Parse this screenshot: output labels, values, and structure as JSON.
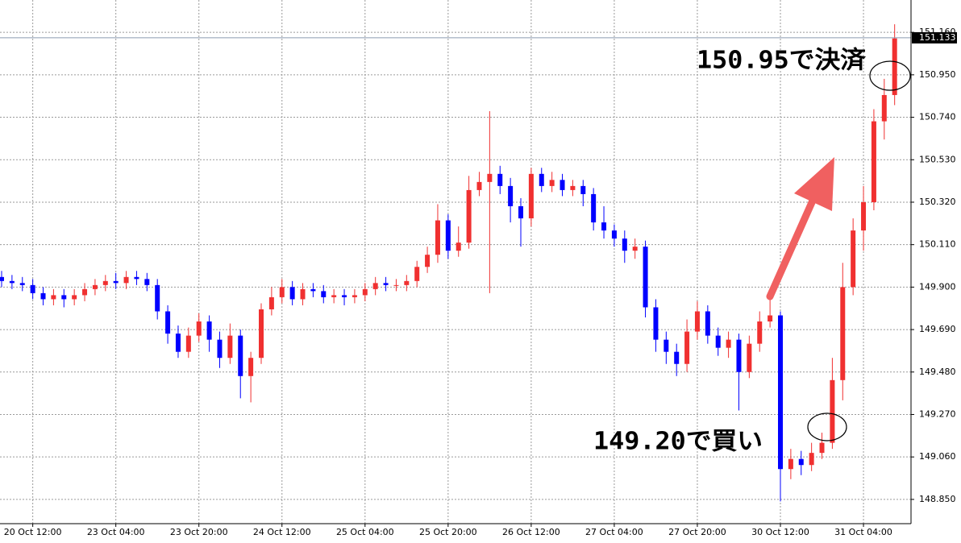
{
  "chart_data": {
    "type": "candlestick",
    "categories": [
      null,
      null,
      null,
      "20 Oct 12:00",
      null,
      null,
      null,
      null,
      null,
      null,
      null,
      "23 Oct 04:00",
      null,
      null,
      null,
      null,
      null,
      null,
      null,
      "23 Oct 20:00",
      null,
      null,
      null,
      null,
      null,
      null,
      null,
      "24 Oct 12:00",
      null,
      null,
      null,
      null,
      null,
      null,
      null,
      "25 Oct 04:00",
      null,
      null,
      null,
      null,
      null,
      null,
      null,
      "25 Oct 20:00",
      null,
      null,
      null,
      null,
      null,
      null,
      null,
      "26 Oct 12:00",
      null,
      null,
      null,
      null,
      null,
      null,
      null,
      "27 Oct 04:00",
      null,
      null,
      null,
      null,
      null,
      null,
      null,
      "27 Oct 20:00",
      null,
      null,
      null,
      null,
      null,
      null,
      null,
      "30 Oct 12:00",
      null,
      null,
      null,
      null,
      null,
      null,
      null,
      "31 Oct 04:00",
      null,
      null,
      null
    ],
    "open": [
      149.95,
      149.93,
      149.92,
      149.91,
      149.87,
      149.84,
      149.86,
      149.84,
      149.86,
      149.89,
      149.91,
      149.93,
      149.92,
      149.95,
      149.94,
      149.91,
      149.78,
      149.67,
      149.58,
      149.66,
      149.73,
      149.64,
      149.55,
      149.66,
      149.46,
      149.55,
      149.79,
      149.85,
      149.9,
      149.84,
      149.89,
      149.88,
      149.85,
      149.86,
      149.85,
      149.86,
      149.89,
      149.92,
      149.91,
      149.91,
      149.93,
      150.0,
      150.06,
      150.23,
      150.08,
      150.12,
      150.38,
      150.42,
      150.46,
      150.4,
      150.3,
      150.24,
      150.46,
      150.4,
      150.43,
      150.38,
      150.4,
      150.36,
      150.22,
      150.18,
      150.14,
      150.08,
      150.1,
      149.8,
      149.64,
      149.58,
      149.52,
      149.68,
      149.78,
      149.66,
      149.6,
      149.64,
      149.48,
      149.62,
      149.73,
      149.76,
      149.0,
      149.05,
      149.02,
      149.08,
      149.13,
      149.44,
      149.9,
      150.18,
      150.32,
      150.72,
      150.85
    ],
    "high": [
      149.98,
      149.96,
      149.95,
      149.94,
      149.9,
      149.89,
      149.89,
      149.89,
      149.92,
      149.94,
      149.96,
      149.97,
      149.98,
      149.98,
      149.97,
      149.94,
      149.81,
      149.71,
      149.7,
      149.77,
      149.76,
      149.68,
      149.72,
      149.69,
      149.58,
      149.82,
      149.9,
      149.94,
      149.93,
      149.92,
      149.92,
      149.91,
      149.89,
      149.89,
      149.89,
      149.92,
      149.95,
      149.95,
      149.94,
      149.96,
      150.03,
      150.1,
      150.31,
      150.26,
      150.2,
      150.45,
      150.47,
      150.77,
      150.5,
      150.44,
      150.34,
      150.49,
      150.49,
      150.47,
      150.46,
      150.43,
      150.43,
      150.39,
      150.3,
      150.21,
      150.18,
      150.14,
      150.13,
      149.84,
      149.68,
      149.62,
      149.74,
      149.83,
      149.81,
      149.7,
      149.68,
      149.67,
      149.66,
      149.78,
      149.86,
      149.78,
      149.1,
      149.09,
      149.13,
      149.18,
      149.55,
      150.02,
      150.24,
      150.4,
      150.78,
      150.93,
      151.2
    ],
    "low": [
      149.9,
      149.89,
      149.88,
      149.84,
      149.81,
      149.81,
      149.8,
      149.81,
      149.83,
      149.86,
      149.88,
      149.89,
      149.89,
      149.91,
      149.88,
      149.74,
      149.62,
      149.55,
      149.55,
      149.63,
      149.58,
      149.5,
      149.52,
      149.35,
      149.33,
      149.52,
      149.76,
      149.82,
      149.81,
      149.81,
      149.85,
      149.82,
      149.82,
      149.81,
      149.82,
      149.83,
      149.86,
      149.88,
      149.88,
      149.88,
      149.9,
      149.97,
      150.02,
      150.04,
      150.05,
      150.09,
      150.35,
      149.87,
      150.36,
      150.22,
      150.1,
      150.2,
      150.37,
      150.37,
      150.35,
      150.35,
      150.3,
      150.18,
      150.14,
      150.1,
      150.02,
      150.04,
      149.75,
      149.58,
      149.52,
      149.46,
      149.48,
      149.64,
      149.62,
      149.56,
      149.55,
      149.29,
      149.45,
      149.58,
      149.7,
      148.84,
      148.95,
      148.97,
      148.99,
      149.05,
      149.1,
      149.34,
      149.86,
      150.08,
      150.28,
      150.63,
      150.8
    ],
    "close": [
      149.93,
      149.92,
      149.91,
      149.87,
      149.84,
      149.86,
      149.84,
      149.86,
      149.89,
      149.91,
      149.93,
      149.92,
      149.95,
      149.94,
      149.91,
      149.78,
      149.67,
      149.58,
      149.66,
      149.73,
      149.64,
      149.55,
      149.66,
      149.46,
      149.55,
      149.79,
      149.85,
      149.9,
      149.84,
      149.89,
      149.88,
      149.85,
      149.86,
      149.85,
      149.86,
      149.89,
      149.92,
      149.91,
      149.91,
      149.93,
      150.0,
      150.06,
      150.23,
      150.08,
      150.12,
      150.38,
      150.42,
      150.46,
      150.4,
      150.3,
      150.24,
      150.46,
      150.4,
      150.43,
      150.38,
      150.4,
      150.36,
      150.22,
      150.18,
      150.14,
      150.08,
      150.1,
      149.8,
      149.64,
      149.58,
      149.52,
      149.68,
      149.78,
      149.66,
      149.6,
      149.64,
      149.48,
      149.62,
      149.73,
      149.76,
      149.0,
      149.05,
      149.02,
      149.08,
      149.13,
      149.44,
      149.9,
      150.18,
      150.32,
      150.72,
      150.85,
      151.13
    ],
    "up_color": "#f03030",
    "down_color": "#0000ff",
    "ylim": [
      148.73,
      151.32
    ],
    "yticks": [
      {
        "value": 148.85,
        "label": "148.850"
      },
      {
        "value": 149.06,
        "label": "149.060"
      },
      {
        "value": 149.27,
        "label": "149.270"
      },
      {
        "value": 149.48,
        "label": "149.480"
      },
      {
        "value": 149.69,
        "label": "149.690"
      },
      {
        "value": 149.9,
        "label": "149.900"
      },
      {
        "value": 150.11,
        "label": "150.110"
      },
      {
        "value": 150.32,
        "label": "150.320"
      },
      {
        "value": 150.53,
        "label": "150.530"
      },
      {
        "value": 150.74,
        "label": "150.740"
      },
      {
        "value": 150.95,
        "label": "150.950"
      },
      {
        "value": 151.16,
        "label": "151.160"
      }
    ],
    "current_price": 151.133,
    "grid": true,
    "annotations": [
      "150.95で決済",
      "149.20で買い"
    ]
  }
}
